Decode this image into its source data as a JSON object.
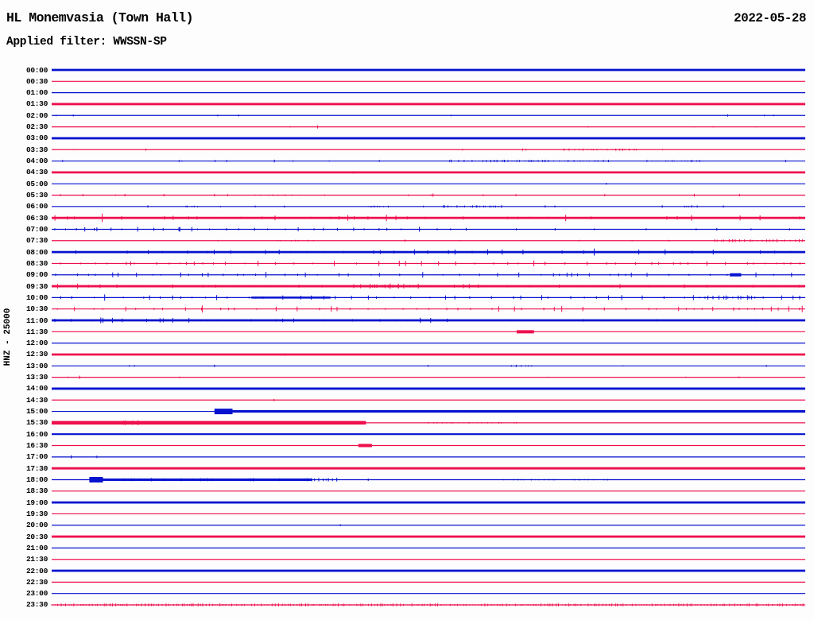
{
  "header": {
    "station_title": "HL Monemvasia (Town Hall)",
    "date": "2022-05-28",
    "filter_label": "Applied filter: WWSSN-SP"
  },
  "colors": {
    "blue": "#0712cf",
    "red": "#ee0f4d",
    "background": "#fdfdfd",
    "text": "#000000"
  },
  "chart_data": {
    "type": "line",
    "subtype": "helicorder-seismogram",
    "title": "HL Monemvasia (Town Hall)",
    "date": "2022-05-28",
    "applied_filter": "WWSSN-SP",
    "channel_label": "HNZ - 25000",
    "minutes_per_row": 30,
    "rows": [
      {
        "label": "00:00",
        "color": "blue",
        "weight": "thick",
        "activity": "quiet",
        "events": []
      },
      {
        "label": "00:30",
        "color": "red",
        "weight": "thin",
        "activity": "quiet",
        "events": []
      },
      {
        "label": "01:00",
        "color": "blue",
        "weight": "thin",
        "activity": "quiet",
        "events": []
      },
      {
        "label": "01:30",
        "color": "red",
        "weight": "thick",
        "activity": "quiet",
        "events": []
      },
      {
        "label": "02:00",
        "color": "blue",
        "weight": "thin",
        "activity": "micro",
        "events": [
          {
            "type": "spike",
            "f": 0.897,
            "amp": 1.5
          },
          {
            "type": "spike",
            "f": 0.946,
            "amp": 1
          },
          {
            "type": "spike",
            "f": 0.958,
            "amp": 1
          }
        ]
      },
      {
        "label": "02:30",
        "color": "red",
        "weight": "thin",
        "activity": "micro",
        "events": [
          {
            "type": "spike",
            "f": 0.353,
            "amp": 2
          }
        ]
      },
      {
        "label": "03:00",
        "color": "blue",
        "weight": "thick",
        "activity": "quiet",
        "events": []
      },
      {
        "label": "03:30",
        "color": "red",
        "weight": "thin",
        "activity": "micro",
        "events": [
          {
            "type": "band",
            "f0": 0.68,
            "f1": 0.78,
            "amp": 1.2
          },
          {
            "type": "spike",
            "f": 0.545,
            "amp": 1
          }
        ]
      },
      {
        "label": "04:00",
        "color": "blue",
        "weight": "thin",
        "activity": "low",
        "events": [
          {
            "type": "band",
            "f0": 0.54,
            "f1": 0.74,
            "amp": 1.2
          },
          {
            "type": "band",
            "f0": 0.79,
            "f1": 0.87,
            "amp": 1
          },
          {
            "type": "spike",
            "f": 0.974,
            "amp": 1.5
          }
        ]
      },
      {
        "label": "04:30",
        "color": "red",
        "weight": "thick",
        "activity": "quiet",
        "events": [
          {
            "type": "spike",
            "f": 0.4,
            "amp": 1.5
          }
        ]
      },
      {
        "label": "05:00",
        "color": "blue",
        "weight": "thin",
        "activity": "quiet",
        "events": [
          {
            "type": "spike",
            "f": 0.736,
            "amp": 1.2
          }
        ]
      },
      {
        "label": "05:30",
        "color": "red",
        "weight": "thin",
        "activity": "low",
        "events": [
          {
            "type": "spike",
            "f": 0.216,
            "amp": 1.5
          },
          {
            "type": "spike",
            "f": 0.506,
            "amp": 2
          },
          {
            "type": "band",
            "f0": 0.27,
            "f1": 0.33,
            "amp": 0.8
          }
        ]
      },
      {
        "label": "06:00",
        "color": "blue",
        "weight": "thin",
        "activity": "low",
        "events": [
          {
            "type": "band",
            "f0": 0.18,
            "f1": 0.2,
            "amp": 1.2
          },
          {
            "type": "spike",
            "f": 0.27,
            "amp": 1.2
          },
          {
            "type": "band",
            "f0": 0.42,
            "f1": 0.45,
            "amp": 1
          },
          {
            "type": "band",
            "f0": 0.52,
            "f1": 0.6,
            "amp": 1.3
          },
          {
            "type": "band",
            "f0": 0.84,
            "f1": 0.86,
            "amp": 1.2
          }
        ]
      },
      {
        "label": "06:30",
        "color": "red",
        "weight": "thick",
        "activity": "spiky",
        "events": []
      },
      {
        "label": "07:00",
        "color": "blue",
        "weight": "thin",
        "activity": "spiky-left",
        "events": [
          {
            "type": "spike",
            "f": 0.06,
            "amp": 2.5
          },
          {
            "type": "spike",
            "f": 0.17,
            "amp": 3
          }
        ]
      },
      {
        "label": "07:30",
        "color": "red",
        "weight": "thin",
        "activity": "micro",
        "events": [
          {
            "type": "band",
            "f0": 0.3,
            "f1": 0.35,
            "amp": 0.8
          },
          {
            "type": "spike",
            "f": 0.7,
            "amp": 1
          },
          {
            "type": "band",
            "f0": 0.88,
            "f1": 1.0,
            "amp": 1.5
          }
        ]
      },
      {
        "label": "08:00",
        "color": "blue",
        "weight": "thick",
        "activity": "spiky",
        "events": []
      },
      {
        "label": "08:30",
        "color": "red",
        "weight": "thin",
        "activity": "spiky",
        "events": [
          {
            "type": "spike",
            "f": 0.105,
            "amp": 2.5
          }
        ]
      },
      {
        "label": "09:00",
        "color": "blue",
        "weight": "thin",
        "activity": "spiky",
        "events": [
          {
            "type": "spike",
            "f": 0.081,
            "amp": 3
          },
          {
            "type": "spike",
            "f": 0.69,
            "amp": 2.5
          },
          {
            "type": "blob",
            "f0": 0.9,
            "f1": 0.915,
            "amp": 4
          }
        ]
      },
      {
        "label": "09:30",
        "color": "red",
        "weight": "thick",
        "activity": "spiky",
        "events": [
          {
            "type": "band",
            "f0": 0.41,
            "f1": 0.49,
            "amp": 2.5
          }
        ]
      },
      {
        "label": "10:00",
        "color": "blue",
        "weight": "thin",
        "activity": "spiky",
        "events": [
          {
            "type": "segment",
            "f0": 0.265,
            "f1": 0.37,
            "amp": 2.6
          },
          {
            "type": "band",
            "f0": 0.86,
            "f1": 0.935,
            "amp": 2
          }
        ]
      },
      {
        "label": "10:30",
        "color": "red",
        "weight": "thin",
        "activity": "spiky",
        "events": [
          {
            "type": "spike",
            "f": 0.2,
            "amp": 4.5
          },
          {
            "type": "spike",
            "f": 0.955,
            "amp": 3
          },
          {
            "type": "spike",
            "f": 0.978,
            "amp": 3.5
          },
          {
            "type": "spike",
            "f": 0.996,
            "amp": 4
          }
        ]
      },
      {
        "label": "11:00",
        "color": "blue",
        "weight": "thick",
        "activity": "spiky-left",
        "events": [
          {
            "type": "spike",
            "f": 0.068,
            "amp": 3
          },
          {
            "type": "spike",
            "f": 0.148,
            "amp": 2.5
          }
        ]
      },
      {
        "label": "11:30",
        "color": "red",
        "weight": "thin",
        "activity": "quiet",
        "events": [
          {
            "type": "blob",
            "f0": 0.617,
            "f1": 0.64,
            "amp": 4
          }
        ]
      },
      {
        "label": "12:00",
        "color": "blue",
        "weight": "thin",
        "activity": "quiet",
        "events": []
      },
      {
        "label": "12:30",
        "color": "red",
        "weight": "thick",
        "activity": "quiet",
        "events": [
          {
            "type": "spike",
            "f": 0.31,
            "amp": 1.5
          }
        ]
      },
      {
        "label": "13:00",
        "color": "blue",
        "weight": "thin",
        "activity": "micro",
        "events": [
          {
            "type": "spike",
            "f": 0.216,
            "amp": 1.5
          },
          {
            "type": "band",
            "f0": 0.61,
            "f1": 0.64,
            "amp": 1.2
          }
        ]
      },
      {
        "label": "13:30",
        "color": "red",
        "weight": "thin",
        "activity": "micro",
        "events": [
          {
            "type": "spike",
            "f": 0.037,
            "amp": 2
          }
        ]
      },
      {
        "label": "14:00",
        "color": "blue",
        "weight": "thick",
        "activity": "quiet",
        "events": []
      },
      {
        "label": "14:30",
        "color": "red",
        "weight": "thin",
        "activity": "quiet",
        "events": [
          {
            "type": "spike",
            "f": 0.295,
            "amp": 1.5
          }
        ]
      },
      {
        "label": "15:00",
        "color": "blue",
        "weight": "thin",
        "activity": "quiet",
        "events": [
          {
            "type": "blob",
            "f0": 0.216,
            "f1": 0.24,
            "amp": 7
          },
          {
            "type": "segment",
            "f0": 0.24,
            "f1": 1.0,
            "amp": 3.2
          },
          {
            "type": "band",
            "f0": 0.55,
            "f1": 0.75,
            "amp": 1
          }
        ]
      },
      {
        "label": "15:30",
        "color": "red",
        "weight": "thin",
        "activity": "quiet",
        "events": [
          {
            "type": "segment",
            "f0": 0.0,
            "f1": 0.417,
            "amp": 4.5
          },
          {
            "type": "band",
            "f0": 0.095,
            "f1": 0.12,
            "amp": 2.5
          },
          {
            "type": "band",
            "f0": 0.5,
            "f1": 0.62,
            "amp": 0.8
          }
        ]
      },
      {
        "label": "16:00",
        "color": "blue",
        "weight": "medium",
        "activity": "quiet",
        "events": []
      },
      {
        "label": "16:30",
        "color": "red",
        "weight": "thin",
        "activity": "quiet",
        "events": [
          {
            "type": "blob",
            "f0": 0.407,
            "f1": 0.425,
            "amp": 4
          }
        ]
      },
      {
        "label": "17:00",
        "color": "blue",
        "weight": "thin",
        "activity": "quiet",
        "events": [
          {
            "type": "spike",
            "f": 0.026,
            "amp": 2
          },
          {
            "type": "spike",
            "f": 0.06,
            "amp": 1.5
          }
        ]
      },
      {
        "label": "17:30",
        "color": "red",
        "weight": "thick",
        "activity": "quiet",
        "events": []
      },
      {
        "label": "18:00",
        "color": "blue",
        "weight": "thin",
        "activity": "quiet",
        "events": [
          {
            "type": "blob",
            "f0": 0.05,
            "f1": 0.068,
            "amp": 7
          },
          {
            "type": "segment",
            "f0": 0.068,
            "f1": 0.345,
            "amp": 3
          },
          {
            "type": "band",
            "f0": 0.068,
            "f1": 0.345,
            "amp": 1.6
          },
          {
            "type": "band",
            "f0": 0.345,
            "f1": 0.385,
            "amp": 2
          },
          {
            "type": "spike",
            "f": 0.42,
            "amp": 1.5
          },
          {
            "type": "band",
            "f0": 0.6,
            "f1": 0.75,
            "amp": 0.8
          }
        ]
      },
      {
        "label": "18:30",
        "color": "red",
        "weight": "thin",
        "activity": "quiet",
        "events": []
      },
      {
        "label": "19:00",
        "color": "blue",
        "weight": "thick",
        "activity": "quiet",
        "events": []
      },
      {
        "label": "19:30",
        "color": "red",
        "weight": "thin",
        "activity": "quiet",
        "events": []
      },
      {
        "label": "20:00",
        "color": "blue",
        "weight": "thin",
        "activity": "quiet",
        "events": [
          {
            "type": "spike",
            "f": 0.383,
            "amp": 1.2
          }
        ]
      },
      {
        "label": "20:30",
        "color": "red",
        "weight": "thick",
        "activity": "quiet",
        "events": []
      },
      {
        "label": "21:00",
        "color": "blue",
        "weight": "thin",
        "activity": "quiet",
        "events": []
      },
      {
        "label": "21:30",
        "color": "red",
        "weight": "thin",
        "activity": "quiet",
        "events": []
      },
      {
        "label": "22:00",
        "color": "blue",
        "weight": "thick",
        "activity": "quiet",
        "events": []
      },
      {
        "label": "22:30",
        "color": "red",
        "weight": "thin",
        "activity": "quiet",
        "events": []
      },
      {
        "label": "23:00",
        "color": "blue",
        "weight": "thin",
        "activity": "quiet",
        "events": []
      },
      {
        "label": "23:30",
        "color": "red",
        "weight": "thin",
        "activity": "noisy-dense",
        "events": []
      }
    ]
  }
}
